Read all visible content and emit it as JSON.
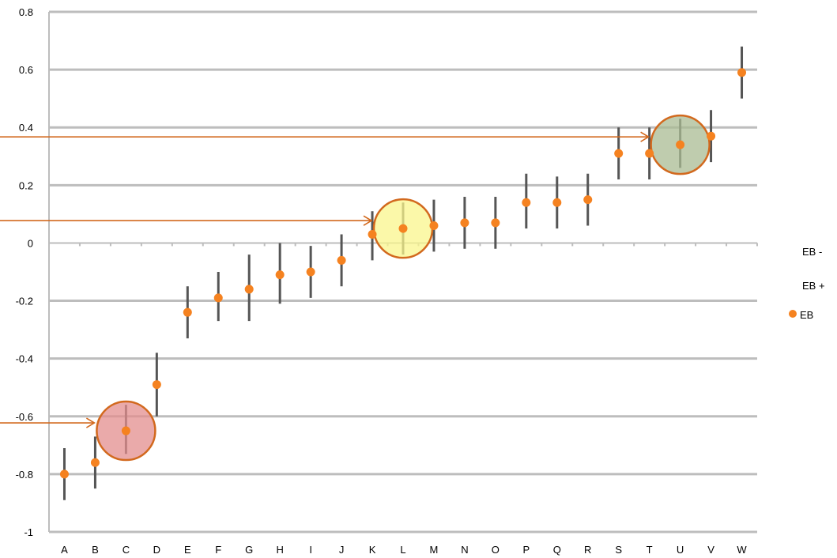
{
  "chart_data": {
    "type": "scatter",
    "title": "",
    "xlabel": "",
    "ylabel": "",
    "categories": [
      "A",
      "B",
      "C",
      "D",
      "E",
      "F",
      "G",
      "H",
      "I",
      "J",
      "K",
      "L",
      "M",
      "N",
      "O",
      "P",
      "Q",
      "R",
      "S",
      "T",
      "U",
      "V",
      "W"
    ],
    "ylim": [
      -1,
      0.8
    ],
    "y_ticks": [
      "0.8",
      "0.6",
      "0.4",
      "0.2",
      "0",
      "-0.2",
      "-0.4",
      "-0.6",
      "-0.8",
      "-1"
    ],
    "grid": true,
    "series": [
      {
        "name": "EB",
        "values": [
          -0.8,
          -0.76,
          -0.65,
          -0.49,
          -0.24,
          -0.19,
          -0.16,
          -0.11,
          -0.1,
          -0.06,
          0.03,
          0.05,
          0.06,
          0.07,
          0.07,
          0.14,
          0.14,
          0.15,
          0.31,
          0.31,
          0.34,
          0.37,
          0.59
        ],
        "color": "#F58220"
      },
      {
        "name": "EB -",
        "values": [
          -0.89,
          -0.85,
          -0.73,
          -0.6,
          -0.33,
          -0.27,
          -0.27,
          -0.21,
          -0.19,
          -0.15,
          -0.06,
          -0.04,
          -0.03,
          -0.02,
          -0.02,
          0.05,
          0.05,
          0.06,
          0.22,
          0.22,
          0.26,
          0.28,
          0.5
        ],
        "color": "#555555"
      },
      {
        "name": "EB +",
        "values": [
          -0.71,
          -0.67,
          -0.56,
          -0.38,
          -0.15,
          -0.1,
          -0.04,
          0.0,
          -0.01,
          0.03,
          0.11,
          0.14,
          0.15,
          0.16,
          0.16,
          0.24,
          0.23,
          0.24,
          0.4,
          0.4,
          0.43,
          0.46,
          0.68
        ],
        "color": "#555555"
      }
    ],
    "legend": {
      "placement": "right",
      "entries": [
        "EB -",
        "EB +",
        "EB"
      ]
    },
    "highlights": [
      {
        "category": "C",
        "value": -0.65,
        "fill": "#E38E8E",
        "stroke": "#D2691E",
        "arrow_from": "left"
      },
      {
        "category": "L",
        "value": 0.05,
        "fill": "#FAF58C",
        "stroke": "#D2691E",
        "arrow_from": "left"
      },
      {
        "category": "U",
        "value": 0.34,
        "fill": "#A9BB93",
        "stroke": "#D2691E",
        "arrow_from": "left"
      }
    ]
  }
}
